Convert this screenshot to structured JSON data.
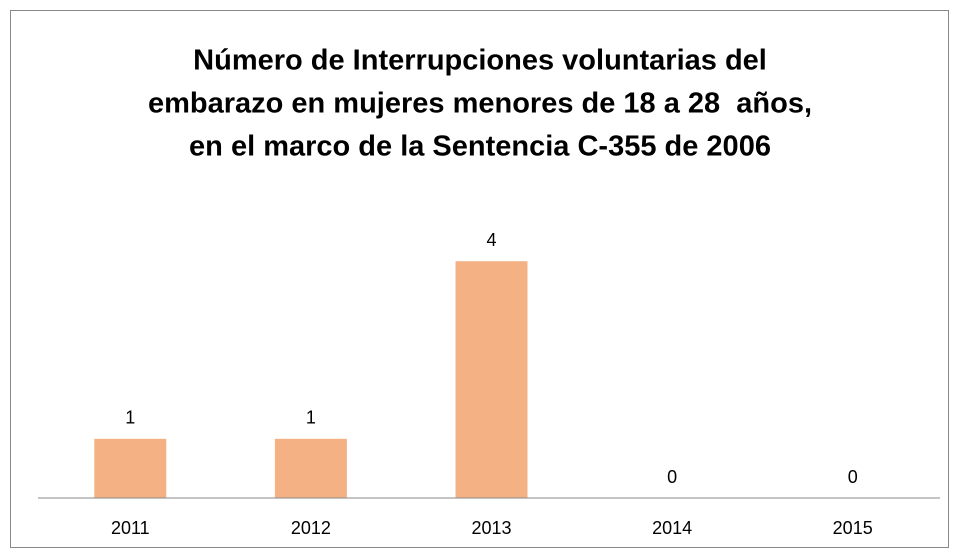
{
  "chart_data": {
    "type": "bar",
    "title": [
      "Número de Interrupciones voluntarias del",
      "embarazo en mujeres menores de 18 a 28  años,",
      "en el marco de la Sentencia C-355 de 2006"
    ],
    "categories": [
      "2011",
      "2012",
      "2013",
      "2014",
      "2015"
    ],
    "values": [
      1,
      1,
      4,
      0,
      0
    ],
    "color": "#f4b183",
    "ylim": [
      0,
      5
    ],
    "data_labels": true
  }
}
